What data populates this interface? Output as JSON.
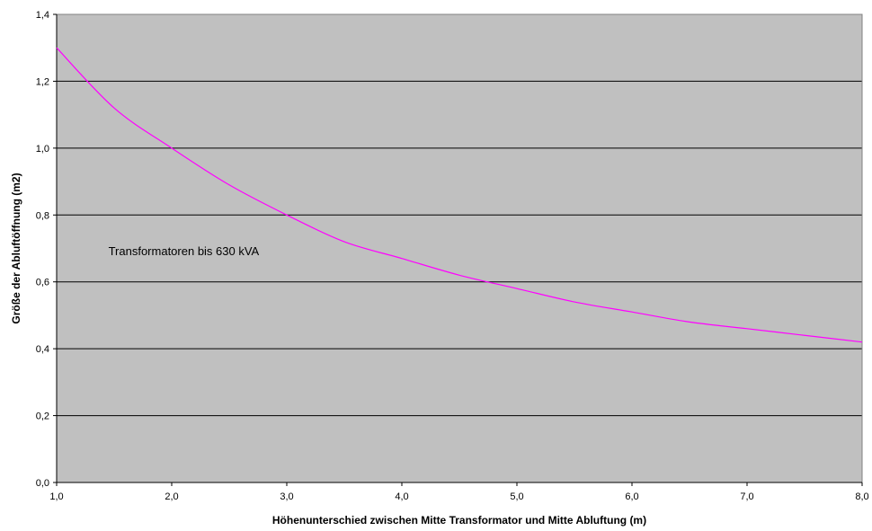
{
  "chart_data": {
    "type": "line",
    "title": "",
    "xlabel": "Höhenunterschied zwischen Mitte Transformator und Mitte Abluftung (m)",
    "ylabel": "Größe der Abluftöffnung (m2)",
    "xlim": [
      1.0,
      8.0
    ],
    "ylim": [
      0.0,
      1.4
    ],
    "x_ticks": [
      "1,0",
      "2,0",
      "3,0",
      "4,0",
      "5,0",
      "6,0",
      "7,0",
      "8,0"
    ],
    "y_ticks": [
      "0,0",
      "0,2",
      "0,4",
      "0,6",
      "0,8",
      "1,0",
      "1,2",
      "1,4"
    ],
    "grid": "horizontal",
    "plot_background": "#c0c0c0",
    "annotations": [
      {
        "text": "Transformatoren bis 630 kVA",
        "x": 1.45,
        "y": 0.69
      }
    ],
    "series": [
      {
        "color": "#ff00ff",
        "x": [
          1.0,
          1.5,
          2.0,
          2.5,
          3.0,
          3.5,
          4.0,
          4.5,
          5.0,
          5.5,
          6.0,
          6.5,
          7.0,
          7.5,
          8.0
        ],
        "y": [
          1.3,
          1.12,
          1.0,
          0.89,
          0.8,
          0.72,
          0.67,
          0.62,
          0.58,
          0.54,
          0.51,
          0.48,
          0.46,
          0.44,
          0.42
        ]
      }
    ]
  }
}
